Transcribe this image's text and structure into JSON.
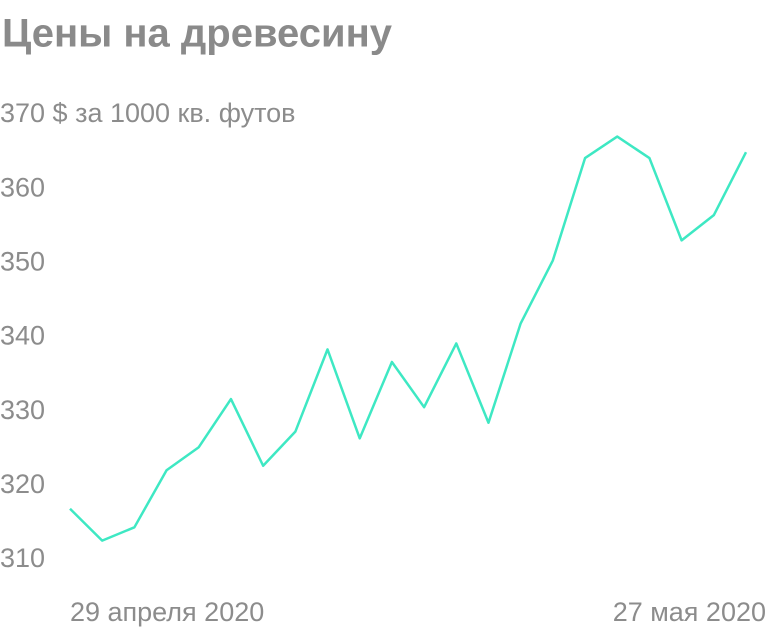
{
  "chart_data": {
    "type": "line",
    "title": "Цены на древесину",
    "categories": [
      "29 апреля 2020",
      null,
      null,
      null,
      null,
      null,
      null,
      null,
      null,
      null,
      null,
      null,
      null,
      null,
      null,
      null,
      null,
      null,
      null,
      null,
      null,
      "27 мая 2020"
    ],
    "series": [
      {
        "color": "#3ee8c3",
        "values": [
          316.9,
          312.6,
          314.4,
          322.1,
          325.2,
          331.7,
          322.7,
          327.3,
          338.4,
          326.4,
          336.7,
          330.6,
          339.2,
          328.5,
          341.9,
          350.4,
          364.2,
          367.1,
          364.2,
          353.1,
          356.5,
          365.0
        ]
      }
    ],
    "ylim": [
      305,
      375
    ],
    "yticks": [
      310,
      320,
      330,
      340,
      350,
      360,
      {
        "value": 370,
        "label": "370 $ за 1000 кв. футов"
      }
    ],
    "grid": false
  }
}
